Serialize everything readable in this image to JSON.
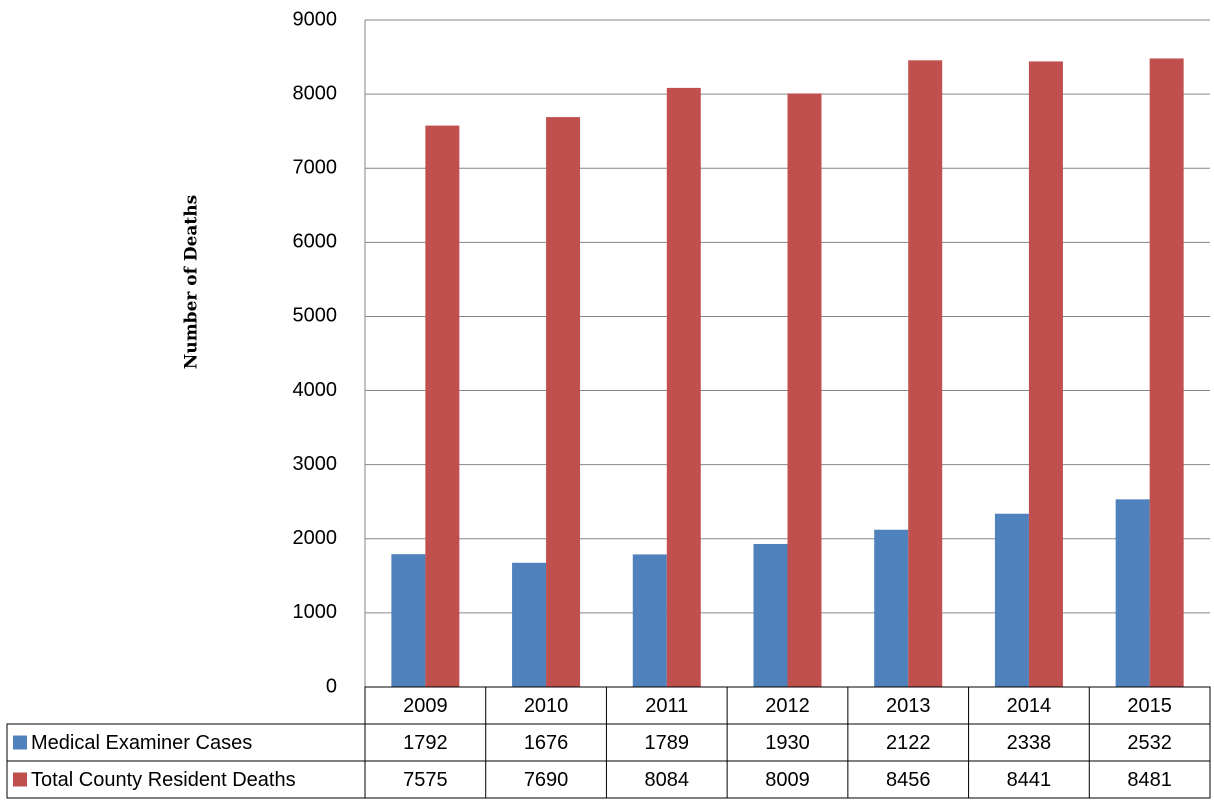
{
  "chart_data": {
    "type": "bar",
    "title": "",
    "xlabel": "",
    "ylabel": "Number of Deaths",
    "ylim": [
      0,
      9000
    ],
    "yticks": [
      0,
      1000,
      2000,
      3000,
      4000,
      5000,
      6000,
      7000,
      8000,
      9000
    ],
    "grid": true,
    "legend": "data-table",
    "categories": [
      "2009",
      "2010",
      "2011",
      "2012",
      "2013",
      "2014",
      "2015"
    ],
    "series": [
      {
        "name": "Medical Examiner Cases",
        "color": "#4F81BD",
        "values": [
          1792,
          1676,
          1789,
          1930,
          2122,
          2338,
          2532
        ]
      },
      {
        "name": "Total County Resident Deaths",
        "color": "#C0504D",
        "values": [
          7575,
          7690,
          8084,
          8009,
          8456,
          8441,
          8481
        ]
      }
    ]
  }
}
